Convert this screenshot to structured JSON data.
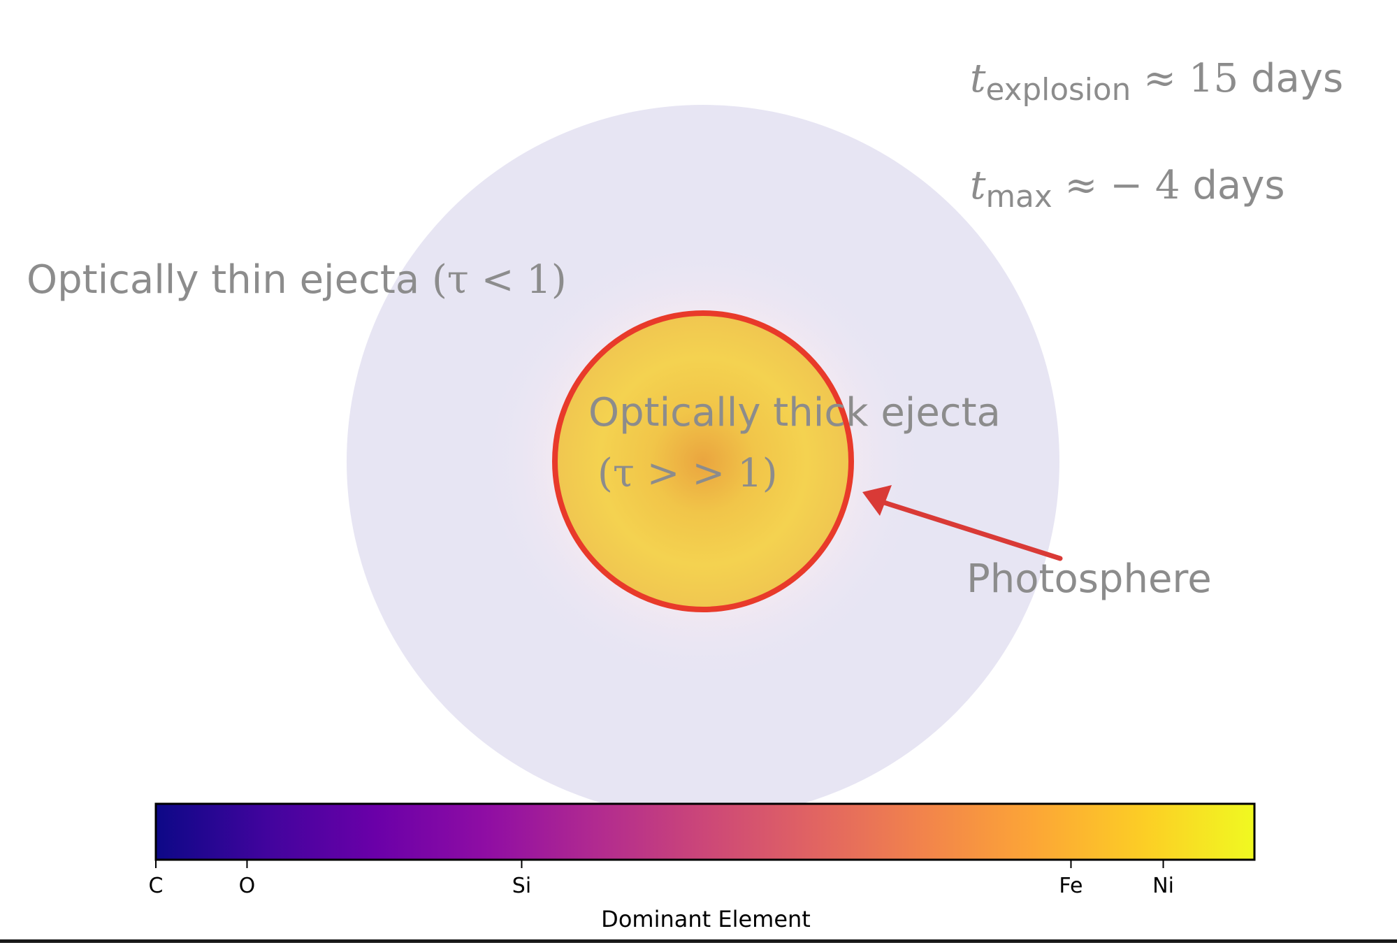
{
  "labels": {
    "thin_text": "Optically thin ejecta",
    "thin_math": "(τ < 1)",
    "thick_text": "Optically thick ejecta",
    "thick_math": "(τ > > 1)",
    "photosphere": "Photosphere",
    "t_explosion_var": "t",
    "t_explosion_sub": "explosion",
    "t_explosion_rel": "≈ 15",
    "t_explosion_unit": "days",
    "t_max_var": "t",
    "t_max_sub": "max",
    "t_max_rel": "≈ − 4",
    "t_max_unit": "days"
  },
  "colorbar": {
    "label": "Dominant Element",
    "ticks": [
      {
        "label": "C",
        "frac": 0.0
      },
      {
        "label": "O",
        "frac": 0.083
      },
      {
        "label": "Si",
        "frac": 0.333
      },
      {
        "label": "Fe",
        "frac": 0.833
      },
      {
        "label": "Ni",
        "frac": 0.917
      }
    ],
    "colormap": "plasma"
  },
  "colors": {
    "outer_ejecta": "#e7e5f3",
    "inner_glow": "#f7e9f1",
    "core": "#f3d14f",
    "core_center": "#ebb040",
    "photosphere_ring": "#e83a2a",
    "arrow": "#d93a36",
    "text": "#8c8c8c"
  }
}
